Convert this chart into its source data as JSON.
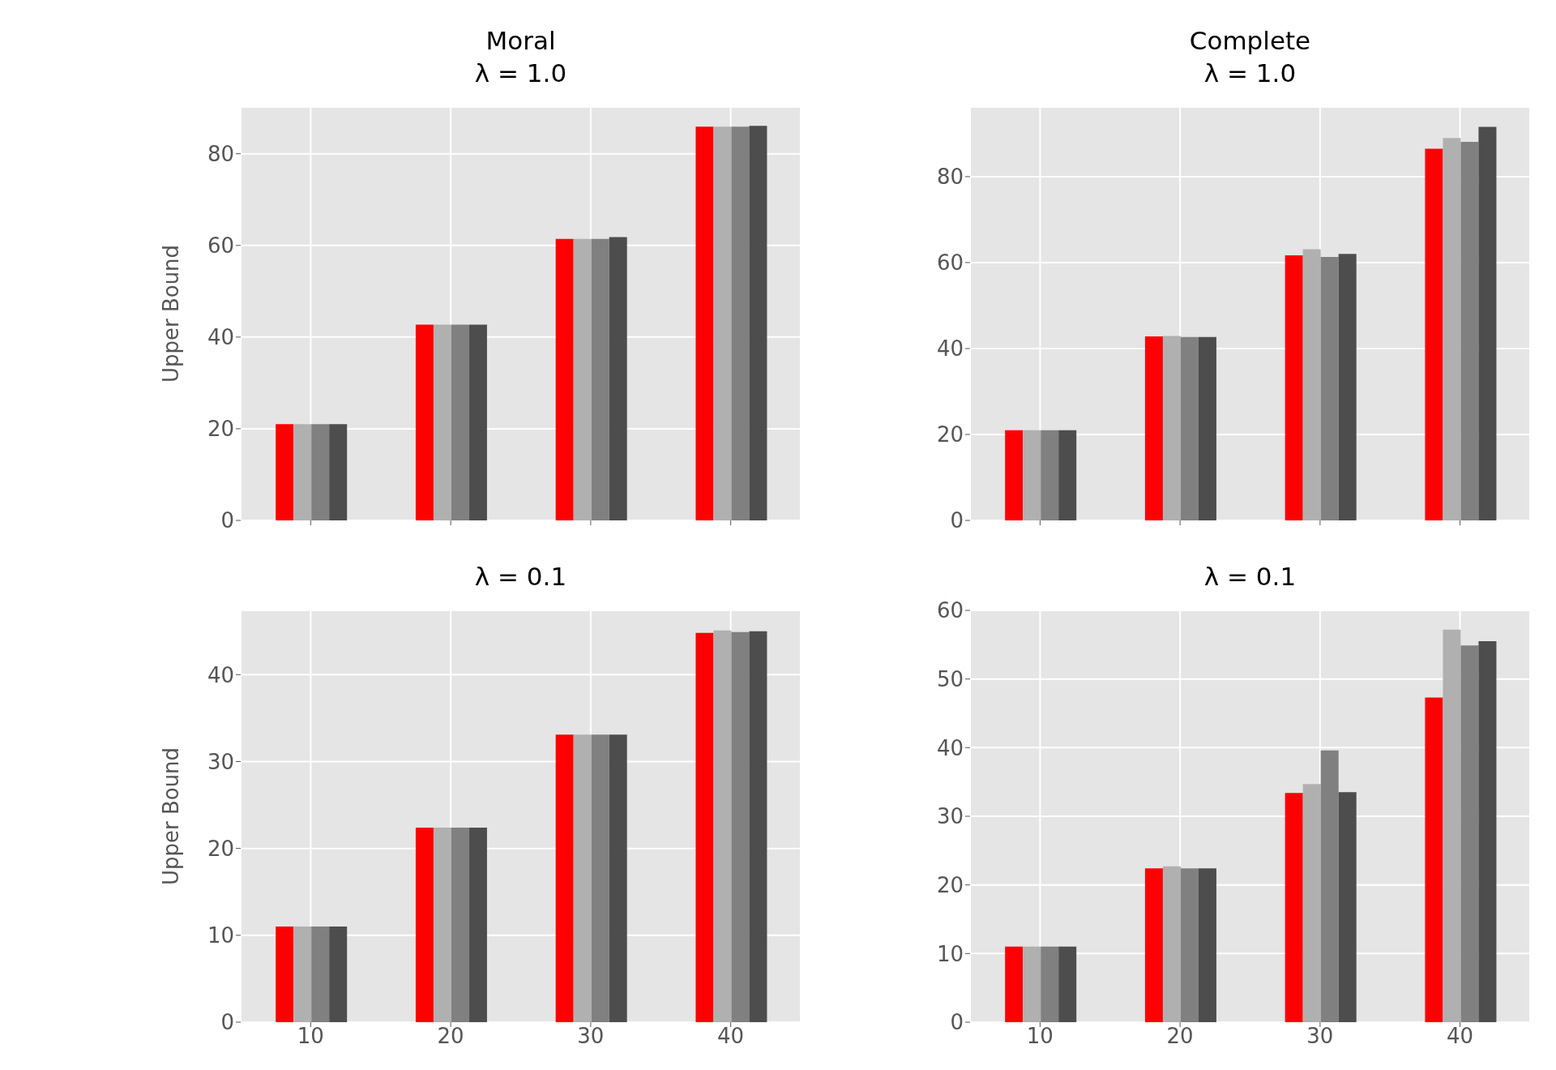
{
  "chart_data": [
    {
      "type": "bar",
      "title": "Moral",
      "subtitle": "λ = 1.0",
      "ylabel": "Upper Bound",
      "x": [
        10,
        20,
        30,
        40
      ],
      "xlim": [
        5,
        45
      ],
      "xticks": [
        10,
        20,
        30,
        40
      ],
      "ylim": [
        0,
        90.2
      ],
      "yticks": [
        0,
        20,
        40,
        60,
        80
      ],
      "grid": true,
      "legend": false,
      "tick_labels": "y",
      "series": [
        {
          "color": "#ff0000",
          "values": [
            21.0,
            42.7,
            61.4,
            85.9
          ]
        },
        {
          "color": "#b0b0b0",
          "values": [
            21.0,
            42.7,
            61.4,
            85.9
          ]
        },
        {
          "color": "#808080",
          "values": [
            21.0,
            42.7,
            61.4,
            85.9
          ]
        },
        {
          "color": "#4d4d4d",
          "values": [
            21.0,
            42.7,
            61.8,
            86.1
          ]
        }
      ]
    },
    {
      "type": "bar",
      "title": "Complete",
      "subtitle": "λ = 1.0",
      "x": [
        10,
        20,
        30,
        40
      ],
      "xlim": [
        5,
        45
      ],
      "xticks": [
        10,
        20,
        30,
        40
      ],
      "ylim": [
        0,
        96.2
      ],
      "yticks": [
        0,
        20,
        40,
        60,
        80
      ],
      "grid": true,
      "legend": false,
      "tick_labels": "y",
      "series": [
        {
          "color": "#ff0000",
          "values": [
            21.0,
            42.8,
            61.7,
            86.5
          ]
        },
        {
          "color": "#b0b0b0",
          "values": [
            21.0,
            42.9,
            63.1,
            89.0
          ]
        },
        {
          "color": "#808080",
          "values": [
            21.0,
            42.7,
            61.3,
            88.1
          ]
        },
        {
          "color": "#4d4d4d",
          "values": [
            21.0,
            42.7,
            62.0,
            91.6
          ]
        }
      ]
    },
    {
      "type": "bar",
      "subtitle": "λ = 0.1",
      "ylabel": "Upper Bound",
      "x": [
        10,
        20,
        30,
        40
      ],
      "xlim": [
        5,
        45
      ],
      "xticks": [
        10,
        20,
        30,
        40
      ],
      "ylim": [
        0,
        47.4
      ],
      "yticks": [
        0,
        10,
        20,
        30,
        40
      ],
      "grid": true,
      "legend": false,
      "series": [
        {
          "color": "#ff0000",
          "values": [
            11.0,
            22.4,
            33.1,
            44.8
          ]
        },
        {
          "color": "#b0b0b0",
          "values": [
            11.0,
            22.4,
            33.1,
            45.1
          ]
        },
        {
          "color": "#808080",
          "values": [
            11.0,
            22.4,
            33.1,
            44.9
          ]
        },
        {
          "color": "#4d4d4d",
          "values": [
            11.0,
            22.4,
            33.1,
            45.0
          ]
        }
      ]
    },
    {
      "type": "bar",
      "subtitle": "λ = 0.1",
      "x": [
        10,
        20,
        30,
        40
      ],
      "xlim": [
        5,
        45
      ],
      "xticks": [
        10,
        20,
        30,
        40
      ],
      "ylim": [
        0,
        60
      ],
      "yticks": [
        0,
        10,
        20,
        30,
        40,
        50,
        60
      ],
      "grid": true,
      "legend": false,
      "series": [
        {
          "color": "#ff0000",
          "values": [
            11.0,
            22.4,
            33.4,
            47.3
          ]
        },
        {
          "color": "#b0b0b0",
          "values": [
            11.0,
            22.7,
            34.7,
            57.2
          ]
        },
        {
          "color": "#808080",
          "values": [
            11.0,
            22.4,
            39.6,
            54.9
          ]
        },
        {
          "color": "#4d4d4d",
          "values": [
            11.0,
            22.4,
            33.5,
            55.5
          ]
        }
      ]
    }
  ]
}
